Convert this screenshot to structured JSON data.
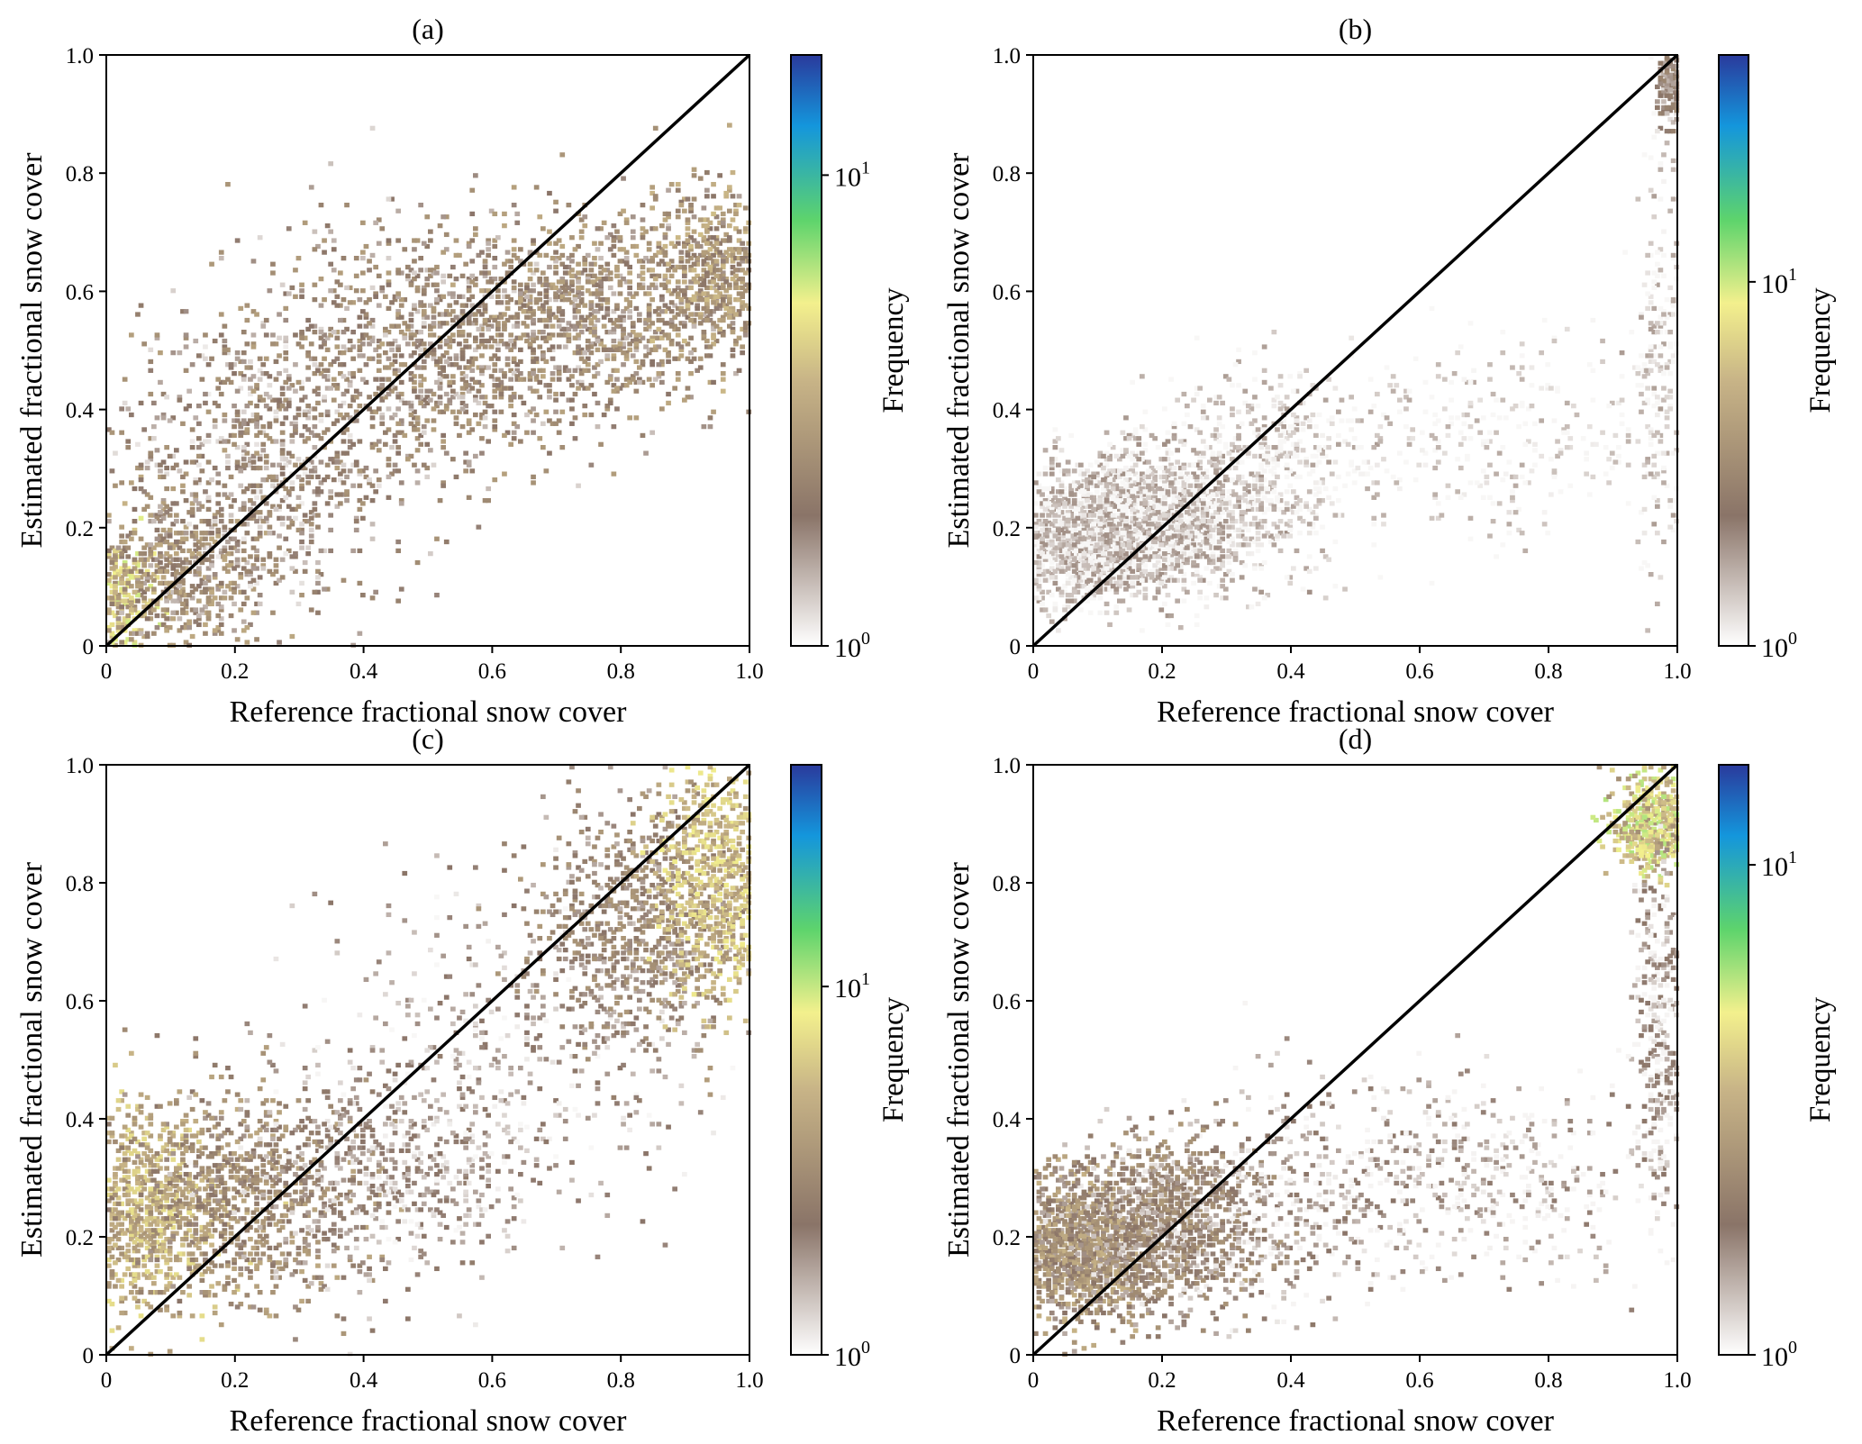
{
  "figure": {
    "panels": [
      {
        "id": "a",
        "title": "(a)",
        "xlabel": "Reference fractional snow cover",
        "ylabel": "Estimated fractional snow cover",
        "xticks": [
          "0",
          "0.2",
          "0.4",
          "0.6",
          "0.8",
          "1.0"
        ],
        "yticks": [
          "0",
          "0.2",
          "0.4",
          "0.6",
          "0.8",
          "1.0"
        ],
        "colorbar": {
          "label": "Frequency",
          "scale": "log",
          "range": [
            1,
            18
          ],
          "ticks": [
            {
              "value": 1,
              "base": "10",
              "exp": "0"
            },
            {
              "value": 10,
              "base": "10",
              "exp": "1"
            }
          ]
        }
      },
      {
        "id": "b",
        "title": "(b)",
        "xlabel": "Reference fractional snow cover",
        "ylabel": "Estimated fractional snow cover",
        "xticks": [
          "0",
          "0.2",
          "0.4",
          "0.6",
          "0.8",
          "1.0"
        ],
        "yticks": [
          "0",
          "0.2",
          "0.4",
          "0.6",
          "0.8",
          "1.0"
        ],
        "colorbar": {
          "label": "Frequency",
          "scale": "log",
          "range": [
            1,
            42
          ],
          "ticks": [
            {
              "value": 1,
              "base": "10",
              "exp": "0"
            },
            {
              "value": 10,
              "base": "10",
              "exp": "1"
            }
          ]
        }
      },
      {
        "id": "c",
        "title": "(c)",
        "xlabel": "Reference fractional snow cover",
        "ylabel": "Estimated fractional snow cover",
        "xticks": [
          "0",
          "0.2",
          "0.4",
          "0.6",
          "0.8",
          "1.0"
        ],
        "yticks": [
          "0",
          "0.2",
          "0.4",
          "0.6",
          "0.8",
          "1.0"
        ],
        "colorbar": {
          "label": "Frequency",
          "scale": "log",
          "range": [
            1,
            40
          ],
          "ticks": [
            {
              "value": 1,
              "base": "10",
              "exp": "0"
            },
            {
              "value": 10,
              "base": "10",
              "exp": "1"
            }
          ]
        }
      },
      {
        "id": "d",
        "title": "(d)",
        "xlabel": "Reference fractional snow cover",
        "ylabel": "Estimated fractional snow cover",
        "xticks": [
          "0",
          "0.2",
          "0.4",
          "0.6",
          "0.8",
          "1.0"
        ],
        "yticks": [
          "0",
          "0.2",
          "0.4",
          "0.6",
          "0.8",
          "1.0"
        ],
        "colorbar": {
          "label": "Frequency",
          "scale": "log",
          "range": [
            1,
            16
          ],
          "ticks": [
            {
              "value": 1,
              "base": "10",
              "exp": "0"
            },
            {
              "value": 10,
              "base": "10",
              "exp": "1"
            }
          ]
        }
      }
    ]
  },
  "chart_data": [
    {
      "panel": "a",
      "type": "heatmap",
      "title": "(a)",
      "xlabel": "Reference fractional snow cover",
      "ylabel": "Estimated fractional snow cover",
      "xlim": [
        0,
        1
      ],
      "ylim": [
        0,
        1
      ],
      "grid": false,
      "reference_line": "1:1",
      "colorbar": {
        "label": "Frequency",
        "scale": "log",
        "range": [
          1,
          18
        ],
        "colormap": "terrain_r"
      },
      "density_clusters": [
        {
          "x": 0.02,
          "y": 0.08,
          "spread_x": 0.03,
          "spread_y": 0.05,
          "weight": 0.06,
          "count": 4.0
        },
        {
          "x": 0.1,
          "y": 0.12,
          "spread_x": 0.07,
          "spread_y": 0.07,
          "weight": 0.14,
          "count": 2.2
        },
        {
          "x": 0.25,
          "y": 0.3,
          "spread_x": 0.12,
          "spread_y": 0.12,
          "weight": 0.2,
          "count": 1.8
        },
        {
          "x": 0.5,
          "y": 0.5,
          "spread_x": 0.15,
          "spread_y": 0.1,
          "weight": 0.25,
          "count": 2.0
        },
        {
          "x": 0.75,
          "y": 0.57,
          "spread_x": 0.12,
          "spread_y": 0.08,
          "weight": 0.22,
          "count": 2.2
        },
        {
          "x": 0.95,
          "y": 0.63,
          "spread_x": 0.05,
          "spread_y": 0.07,
          "weight": 0.13,
          "count": 2.6
        }
      ]
    },
    {
      "panel": "b",
      "type": "heatmap",
      "title": "(b)",
      "xlabel": "Reference fractional snow cover",
      "ylabel": "Estimated fractional snow cover",
      "xlim": [
        0,
        1
      ],
      "ylim": [
        0,
        1
      ],
      "grid": false,
      "reference_line": "1:1",
      "colorbar": {
        "label": "Frequency",
        "scale": "log",
        "range": [
          1,
          42
        ],
        "colormap": "terrain_r"
      },
      "density_clusters": [
        {
          "x": 0.08,
          "y": 0.18,
          "spread_x": 0.08,
          "spread_y": 0.05,
          "weight": 0.4,
          "count": 1.3
        },
        {
          "x": 0.2,
          "y": 0.22,
          "spread_x": 0.08,
          "spread_y": 0.06,
          "weight": 0.3,
          "count": 1.3
        },
        {
          "x": 0.35,
          "y": 0.3,
          "spread_x": 0.08,
          "spread_y": 0.08,
          "weight": 0.12,
          "count": 1.2
        },
        {
          "x": 0.7,
          "y": 0.35,
          "spread_x": 0.15,
          "spread_y": 0.08,
          "weight": 0.08,
          "count": 1.1
        },
        {
          "x": 0.99,
          "y": 0.95,
          "spread_x": 0.01,
          "spread_y": 0.03,
          "weight": 0.05,
          "count": 2.0
        },
        {
          "x": 0.97,
          "y": 0.5,
          "spread_x": 0.02,
          "spread_y": 0.2,
          "weight": 0.05,
          "count": 1.2
        }
      ]
    },
    {
      "panel": "c",
      "type": "heatmap",
      "title": "(c)",
      "xlabel": "Reference fractional snow cover",
      "ylabel": "Estimated fractional snow cover",
      "xlim": [
        0,
        1
      ],
      "ylim": [
        0,
        1
      ],
      "grid": false,
      "reference_line": "1:1",
      "colorbar": {
        "label": "Frequency",
        "scale": "log",
        "range": [
          1,
          40
        ],
        "colormap": "terrain_r"
      },
      "density_clusters": [
        {
          "x": 0.06,
          "y": 0.25,
          "spread_x": 0.06,
          "spread_y": 0.08,
          "weight": 0.2,
          "count": 5.0
        },
        {
          "x": 0.2,
          "y": 0.27,
          "spread_x": 0.1,
          "spread_y": 0.09,
          "weight": 0.2,
          "count": 3.0
        },
        {
          "x": 0.42,
          "y": 0.3,
          "spread_x": 0.12,
          "spread_y": 0.09,
          "weight": 0.12,
          "count": 1.7
        },
        {
          "x": 0.6,
          "y": 0.5,
          "spread_x": 0.15,
          "spread_y": 0.15,
          "weight": 0.1,
          "count": 1.6
        },
        {
          "x": 0.82,
          "y": 0.72,
          "spread_x": 0.08,
          "spread_y": 0.1,
          "weight": 0.18,
          "count": 2.5
        },
        {
          "x": 0.95,
          "y": 0.8,
          "spread_x": 0.05,
          "spread_y": 0.1,
          "weight": 0.2,
          "count": 5.5
        }
      ]
    },
    {
      "panel": "d",
      "type": "heatmap",
      "title": "(d)",
      "xlabel": "Reference fractional snow cover",
      "ylabel": "Estimated fractional snow cover",
      "xlim": [
        0,
        1
      ],
      "ylim": [
        0,
        1
      ],
      "grid": false,
      "reference_line": "1:1",
      "colorbar": {
        "label": "Frequency",
        "scale": "log",
        "range": [
          1,
          16
        ],
        "colormap": "terrain_r"
      },
      "density_clusters": [
        {
          "x": 0.07,
          "y": 0.18,
          "spread_x": 0.06,
          "spread_y": 0.06,
          "weight": 0.3,
          "count": 2.3
        },
        {
          "x": 0.2,
          "y": 0.22,
          "spread_x": 0.08,
          "spread_y": 0.07,
          "weight": 0.3,
          "count": 1.8
        },
        {
          "x": 0.45,
          "y": 0.28,
          "spread_x": 0.12,
          "spread_y": 0.1,
          "weight": 0.1,
          "count": 1.3
        },
        {
          "x": 0.75,
          "y": 0.3,
          "spread_x": 0.12,
          "spread_y": 0.08,
          "weight": 0.08,
          "count": 1.2
        },
        {
          "x": 0.96,
          "y": 0.9,
          "spread_x": 0.03,
          "spread_y": 0.04,
          "weight": 0.14,
          "count": 4.0
        },
        {
          "x": 0.97,
          "y": 0.55,
          "spread_x": 0.02,
          "spread_y": 0.15,
          "weight": 0.08,
          "count": 1.3
        }
      ]
    }
  ]
}
